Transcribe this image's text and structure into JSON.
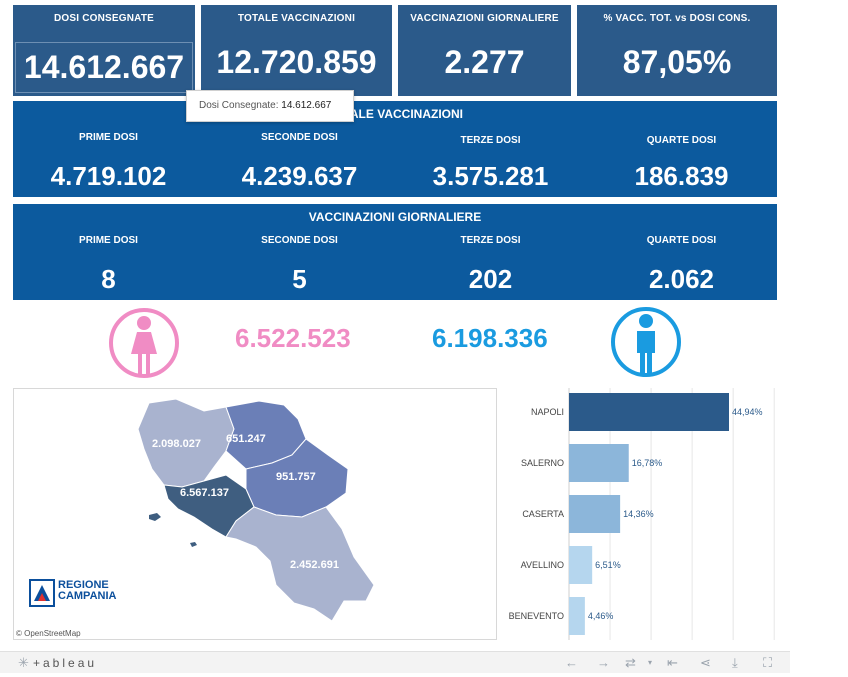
{
  "kpis": [
    {
      "label": "DOSI  CONSEGNATE",
      "value": "14.612.667"
    },
    {
      "label": "TOTALE VACCINAZIONI",
      "value": "12.720.859"
    },
    {
      "label": "VACCINAZIONI GIORNALIERE",
      "value": "2.277"
    },
    {
      "label": "% VACC. TOT. vs DOSI CONS.",
      "value": "87,05%"
    }
  ],
  "tooltip": {
    "label": "Dosi Consegnate:",
    "value": "14.612.667"
  },
  "totale": {
    "title": "TOTALE VACCINAZIONI",
    "cols": [
      {
        "label": "PRIME DOSI",
        "value": "4.719.102"
      },
      {
        "label": "SECONDE DOSI",
        "value": "4.239.637"
      },
      {
        "label": "TERZE DOSI",
        "value": "3.575.281"
      },
      {
        "label": "QUARTE DOSI",
        "value": "186.839"
      }
    ]
  },
  "giornaliere": {
    "title": "VACCINAZIONI GIORNALIERE",
    "cols": [
      {
        "label": "PRIME DOSI",
        "value": "8"
      },
      {
        "label": "SECONDE DOSI",
        "value": "5"
      },
      {
        "label": "TERZE DOSI",
        "value": "202"
      },
      {
        "label": "QUARTE DOSI",
        "value": "2.062"
      }
    ]
  },
  "gender": {
    "female": "6.522.523",
    "male": "6.198.336",
    "female_color": "#f08cc4",
    "male_color": "#1a9be0"
  },
  "map": {
    "regions": [
      {
        "name": "caserta",
        "value": "2.098.027"
      },
      {
        "name": "benevento",
        "value": "651.247"
      },
      {
        "name": "avellino",
        "value": "951.757"
      },
      {
        "name": "napoli",
        "value": "6.567.137"
      },
      {
        "name": "salerno",
        "value": "2.452.691"
      }
    ],
    "logo_line1": "REGIONE",
    "logo_line2": "CAMPANIA",
    "credit": "© OpenStreetMap"
  },
  "chart_data": {
    "type": "bar",
    "orientation": "horizontal",
    "categories": [
      "NAPOLI",
      "SALERNO",
      "CASERTA",
      "AVELLINO",
      "BENEVENTO"
    ],
    "values": [
      44.94,
      16.78,
      14.36,
      6.51,
      4.46
    ],
    "labels": [
      "44,94%",
      "16,78%",
      "14,36%",
      "6,51%",
      "4,46%"
    ],
    "xlim": [
      0,
      50
    ],
    "grid": true,
    "colors": [
      "#2b5a8a",
      "#8cb6da",
      "#8cb6da",
      "#b5d6ee",
      "#b5d6ee"
    ]
  },
  "toolbar": {
    "brand": "+ableau"
  }
}
